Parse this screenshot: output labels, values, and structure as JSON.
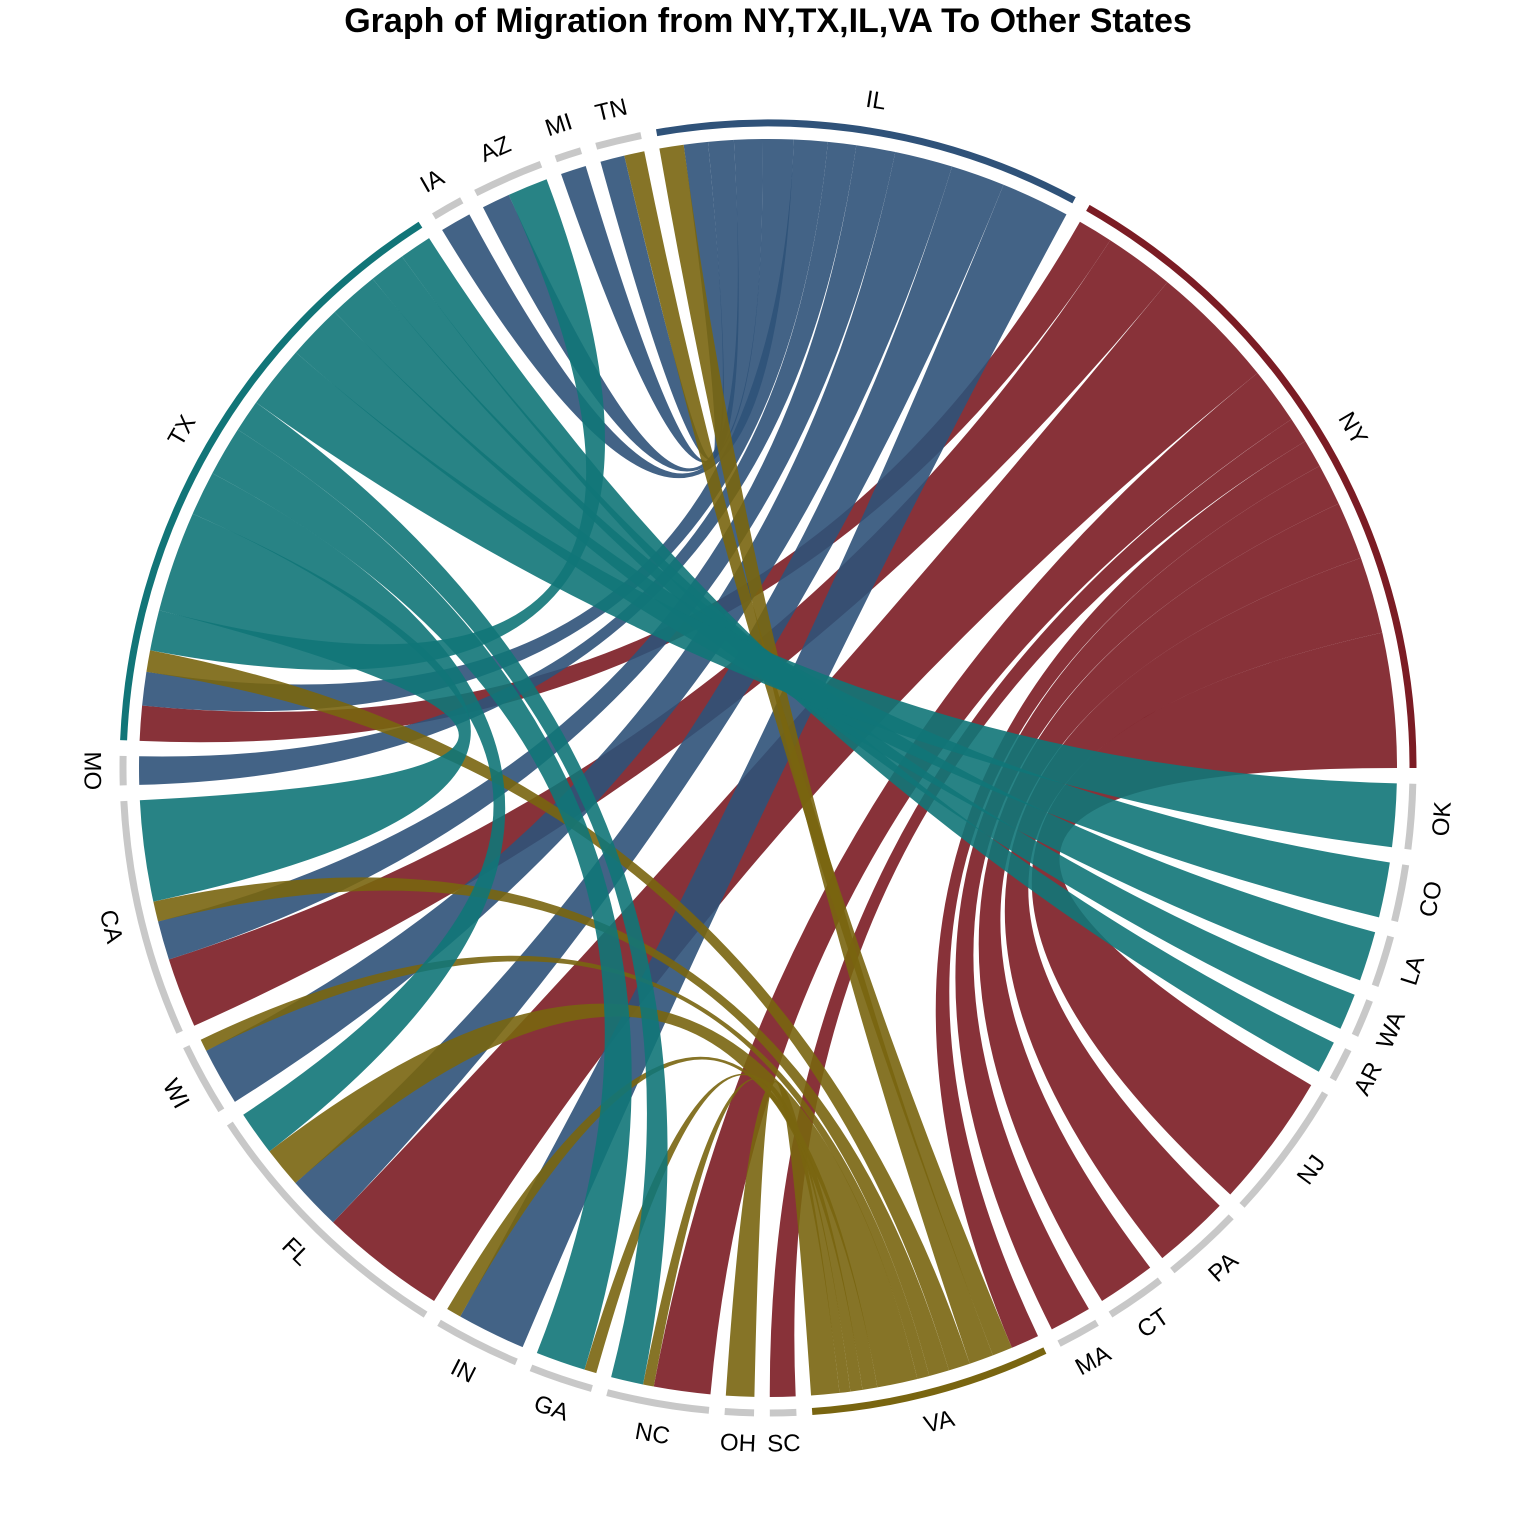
{
  "chart_data": {
    "type": "chord",
    "title": "Graph of Migration from NY,TX,IL,VA To Other States",
    "colors": {
      "NY": "#7b1c24",
      "TX": "#117578",
      "IL": "#2f5279",
      "VA": "#796510",
      "other_track": "#c8c8c8"
    },
    "sources": [
      "NY",
      "TX",
      "IL",
      "VA"
    ],
    "sector_order": [
      "NY",
      "IL",
      "TN",
      "MI",
      "AZ",
      "IA",
      "TX",
      "MO",
      "CA",
      "WI",
      "FL",
      "IN",
      "GA",
      "NC",
      "OH",
      "SC",
      "VA",
      "MA",
      "CT",
      "PA",
      "NJ",
      "AR",
      "WA",
      "LA",
      "CO",
      "OK"
    ],
    "flows": [
      {
        "from": "NY",
        "to": "NJ",
        "value": 10.0
      },
      {
        "from": "NY",
        "to": "PA",
        "value": 5.7
      },
      {
        "from": "NY",
        "to": "CT",
        "value": 4.3
      },
      {
        "from": "NY",
        "to": "MA",
        "value": 3.1
      },
      {
        "from": "NY",
        "to": "VA",
        "value": 2.1
      },
      {
        "from": "NY",
        "to": "SC",
        "value": 1.9
      },
      {
        "from": "NY",
        "to": "NC",
        "value": 4.2
      },
      {
        "from": "NY",
        "to": "FL",
        "value": 9.4
      },
      {
        "from": "NY",
        "to": "CA",
        "value": 5.2
      },
      {
        "from": "NY",
        "to": "TX",
        "value": 2.6
      },
      {
        "from": "IL",
        "to": "IN",
        "value": 5.1
      },
      {
        "from": "IL",
        "to": "FL",
        "value": 4.0
      },
      {
        "from": "IL",
        "to": "WI",
        "value": 4.3
      },
      {
        "from": "IL",
        "to": "CA",
        "value": 2.9
      },
      {
        "from": "IL",
        "to": "MO",
        "value": 2.1
      },
      {
        "from": "IL",
        "to": "TX",
        "value": 2.5
      },
      {
        "from": "IL",
        "to": "IA",
        "value": 2.3
      },
      {
        "from": "IL",
        "to": "AZ",
        "value": 2.1
      },
      {
        "from": "IL",
        "to": "MI",
        "value": 1.9
      },
      {
        "from": "IL",
        "to": "TN",
        "value": 1.8
      },
      {
        "from": "VA",
        "to": "OH",
        "value": 2.1
      },
      {
        "from": "VA",
        "to": "NC",
        "value": 0.8
      },
      {
        "from": "VA",
        "to": "GA",
        "value": 0.9
      },
      {
        "from": "VA",
        "to": "IN",
        "value": 1.1
      },
      {
        "from": "VA",
        "to": "FL",
        "value": 3.0
      },
      {
        "from": "VA",
        "to": "WI",
        "value": 0.9
      },
      {
        "from": "VA",
        "to": "CA",
        "value": 1.5
      },
      {
        "from": "VA",
        "to": "TX",
        "value": 1.6
      },
      {
        "from": "VA",
        "to": "IL",
        "value": 1.8
      },
      {
        "from": "VA",
        "to": "TN",
        "value": 1.5
      },
      {
        "from": "TX",
        "to": "AR",
        "value": 2.4
      },
      {
        "from": "TX",
        "to": "WA",
        "value": 2.7
      },
      {
        "from": "TX",
        "to": "LA",
        "value": 3.7
      },
      {
        "from": "TX",
        "to": "CO",
        "value": 4.1
      },
      {
        "from": "TX",
        "to": "OK",
        "value": 4.7
      },
      {
        "from": "TX",
        "to": "NC",
        "value": 2.4
      },
      {
        "from": "TX",
        "to": "GA",
        "value": 3.7
      },
      {
        "from": "TX",
        "to": "FL",
        "value": 3.3
      },
      {
        "from": "TX",
        "to": "CA",
        "value": 7.5
      },
      {
        "from": "TX",
        "to": "AZ",
        "value": 3.0
      }
    ]
  }
}
